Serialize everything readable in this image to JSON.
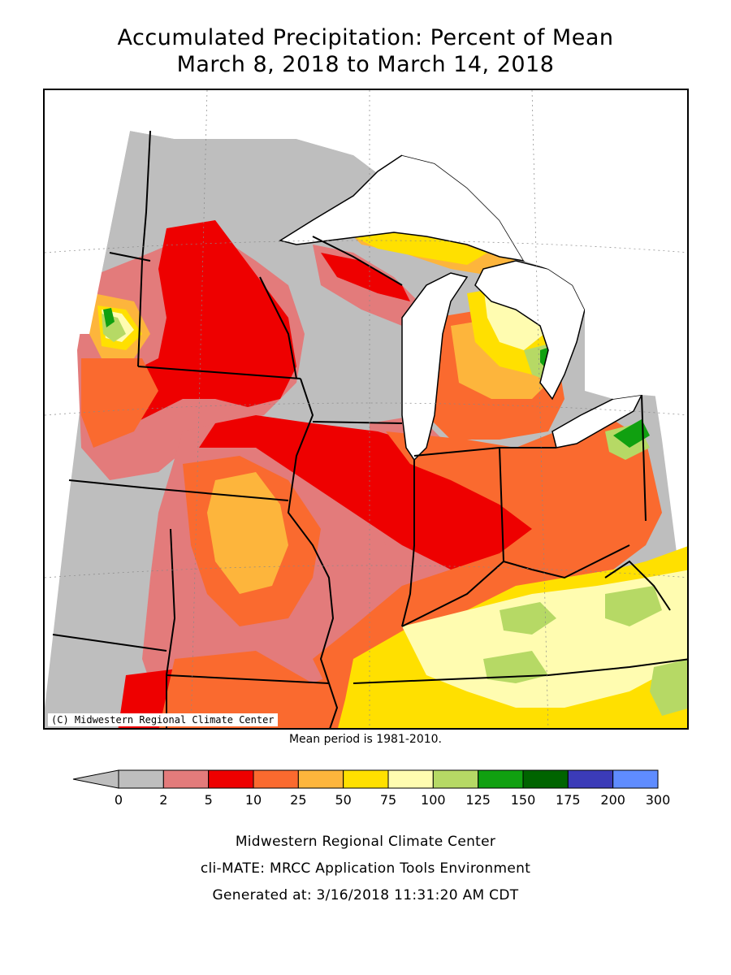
{
  "title": {
    "line1": "Accumulated Precipitation: Percent of Mean",
    "line2": "March 8, 2018 to March 14, 2018"
  },
  "map": {
    "copyright": "(C) Midwestern Regional Climate Center",
    "mean_period": "Mean period is 1981-2010."
  },
  "legend": {
    "bins": [
      {
        "from": "0",
        "to": "2",
        "color": "#bebebe"
      },
      {
        "from": "2",
        "to": "5",
        "color": "#e37b7b"
      },
      {
        "from": "5",
        "to": "10",
        "color": "#ee0000"
      },
      {
        "from": "10",
        "to": "25",
        "color": "#fa6a2f"
      },
      {
        "from": "25",
        "to": "50",
        "color": "#fdb53c"
      },
      {
        "from": "50",
        "to": "75",
        "color": "#ffe000"
      },
      {
        "from": "75",
        "to": "100",
        "color": "#fffcb0"
      },
      {
        "from": "100",
        "to": "125",
        "color": "#b6d965"
      },
      {
        "from": "125",
        "to": "150",
        "color": "#10a010"
      },
      {
        "from": "150",
        "to": "175",
        "color": "#006400"
      },
      {
        "from": "175",
        "to": "200",
        "color": "#3b3bb8"
      },
      {
        "from": "200",
        "to": "300",
        "color": "#5f8cff"
      }
    ],
    "tick_labels": [
      "0",
      "2",
      "5",
      "10",
      "25",
      "50",
      "75",
      "100",
      "125",
      "150",
      "175",
      "200",
      "300"
    ]
  },
  "footer": {
    "line1": "Midwestern Regional Climate Center",
    "line2": "cli-MATE: MRCC Application Tools Environment",
    "line3": "Generated at: 3/16/2018 11:31:20 AM CDT"
  }
}
